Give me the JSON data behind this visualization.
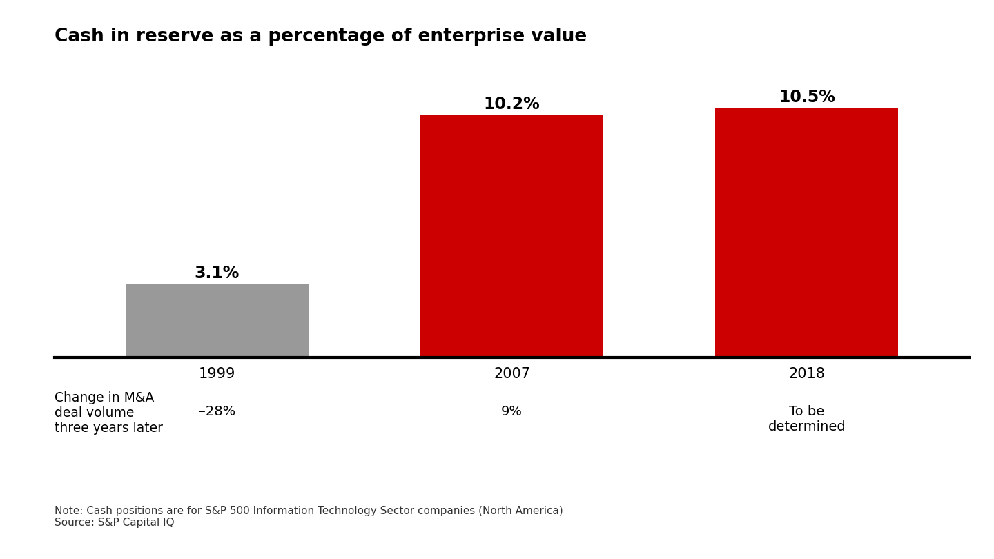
{
  "title": "Cash in reserve as a percentage of enterprise value",
  "categories": [
    "1999",
    "2007",
    "2018"
  ],
  "values": [
    3.1,
    10.2,
    10.5
  ],
  "bar_colors": [
    "#999999",
    "#cc0000",
    "#cc0000"
  ],
  "bar_labels": [
    "3.1%",
    "10.2%",
    "10.5%"
  ],
  "ylim": [
    0,
    12
  ],
  "background_color": "#ffffff",
  "title_fontsize": 19,
  "label_fontsize": 17,
  "tick_fontsize": 15,
  "note_text": "Note: Cash positions are for S&P 500 Information Technology Sector companies (North America)\nSource: S&P Capital IQ",
  "subtitle_label": "Change in M&A\ndeal volume\nthree years later",
  "subtitle_values": [
    "–28%",
    "9%",
    "To be\ndetermined"
  ]
}
